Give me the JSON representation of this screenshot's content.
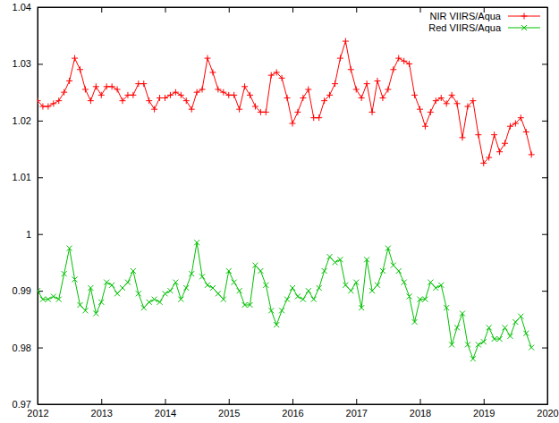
{
  "chart_data": {
    "type": "line",
    "x": [
      2012,
      2012.0833,
      2012.1667,
      2012.25,
      2012.3333,
      2012.4167,
      2012.5,
      2012.5833,
      2012.6667,
      2012.75,
      2012.8333,
      2012.9167,
      2013,
      2013.0833,
      2013.1667,
      2013.25,
      2013.3333,
      2013.4167,
      2013.5,
      2013.5833,
      2013.6667,
      2013.75,
      2013.8333,
      2013.9167,
      2014,
      2014.0833,
      2014.1667,
      2014.25,
      2014.3333,
      2014.4167,
      2014.5,
      2014.5833,
      2014.6667,
      2014.75,
      2014.8333,
      2014.9167,
      2015,
      2015.0833,
      2015.1667,
      2015.25,
      2015.3333,
      2015.4167,
      2015.5,
      2015.5833,
      2015.6667,
      2015.75,
      2015.8333,
      2015.9167,
      2016,
      2016.0833,
      2016.1667,
      2016.25,
      2016.3333,
      2016.4167,
      2016.5,
      2016.5833,
      2016.6667,
      2016.75,
      2016.8333,
      2016.9167,
      2017,
      2017.0833,
      2017.1667,
      2017.25,
      2017.3333,
      2017.4167,
      2017.5,
      2017.5833,
      2017.6667,
      2017.75,
      2017.8333,
      2017.9167,
      2018,
      2018.0833,
      2018.1667,
      2018.25,
      2018.3333,
      2018.4167,
      2018.5,
      2018.5833,
      2018.6667,
      2018.75,
      2018.8333,
      2018.9167,
      2019,
      2019.0833,
      2019.1667,
      2019.25,
      2019.3333,
      2019.4167,
      2019.5,
      2019.5833,
      2019.6667,
      2019.75
    ],
    "series": [
      {
        "name": "NIR VIIRS/Aqua",
        "color": "#ff0000",
        "marker": "plus",
        "line_style": "solid",
        "values": [
          1.0235,
          1.0225,
          1.0225,
          1.023,
          1.0235,
          1.025,
          1.027,
          1.031,
          1.029,
          1.0255,
          1.0235,
          1.026,
          1.0245,
          1.026,
          1.026,
          1.0255,
          1.0235,
          1.0245,
          1.0245,
          1.0265,
          1.0265,
          1.0235,
          1.022,
          1.024,
          1.024,
          1.0245,
          1.025,
          1.0245,
          1.0235,
          1.022,
          1.025,
          1.0255,
          1.031,
          1.0285,
          1.0255,
          1.025,
          1.0245,
          1.0245,
          1.022,
          1.026,
          1.0245,
          1.0225,
          1.0215,
          1.0215,
          1.028,
          1.0285,
          1.0275,
          1.024,
          1.0195,
          1.0215,
          1.024,
          1.0255,
          1.0205,
          1.0205,
          1.0235,
          1.0245,
          1.0265,
          1.031,
          1.034,
          1.029,
          1.0255,
          1.024,
          1.0265,
          1.0215,
          1.027,
          1.024,
          1.0255,
          1.029,
          1.031,
          1.0305,
          1.03,
          1.0245,
          1.022,
          1.019,
          1.0215,
          1.0235,
          1.024,
          1.023,
          1.0245,
          1.023,
          1.017,
          1.0225,
          1.0235,
          1.0175,
          1.0125,
          1.0135,
          1.0175,
          1.0145,
          1.016,
          1.019,
          1.0195,
          1.0205,
          1.018,
          1.014
        ]
      },
      {
        "name": "Red VIIRS/Aqua",
        "color": "#00c000",
        "marker": "cross",
        "line_style": "solid",
        "values": [
          0.99,
          0.9885,
          0.9885,
          0.989,
          0.9885,
          0.993,
          0.9975,
          0.992,
          0.9875,
          0.9865,
          0.9905,
          0.986,
          0.988,
          0.9915,
          0.991,
          0.9895,
          0.9905,
          0.9915,
          0.9935,
          0.9895,
          0.987,
          0.988,
          0.9885,
          0.988,
          0.9895,
          0.99,
          0.9915,
          0.9885,
          0.9905,
          0.993,
          0.9985,
          0.9925,
          0.991,
          0.9905,
          0.9895,
          0.9885,
          0.9935,
          0.9915,
          0.99,
          0.9875,
          0.9875,
          0.9945,
          0.9935,
          0.991,
          0.9865,
          0.984,
          0.9865,
          0.9885,
          0.9905,
          0.989,
          0.9885,
          0.99,
          0.9885,
          0.9905,
          0.9935,
          0.996,
          0.995,
          0.9955,
          0.991,
          0.99,
          0.9915,
          0.987,
          0.9955,
          0.99,
          0.991,
          0.9935,
          0.9975,
          0.9945,
          0.9935,
          0.9915,
          0.989,
          0.9845,
          0.9885,
          0.9885,
          0.9915,
          0.9905,
          0.991,
          0.987,
          0.9805,
          0.9835,
          0.986,
          0.9805,
          0.978,
          0.9805,
          0.981,
          0.9835,
          0.9815,
          0.9815,
          0.9835,
          0.982,
          0.9845,
          0.9855,
          0.9825,
          0.98
        ]
      }
    ],
    "xlim": [
      2012,
      2020
    ],
    "xticks": [
      2012,
      2013,
      2014,
      2015,
      2016,
      2017,
      2018,
      2019,
      2020
    ],
    "ylim": [
      0.97,
      1.04
    ],
    "yticks": [
      0.97,
      0.98,
      0.99,
      1,
      1.01,
      1.02,
      1.03,
      1.04
    ],
    "legend": "top-right",
    "grid": false
  }
}
